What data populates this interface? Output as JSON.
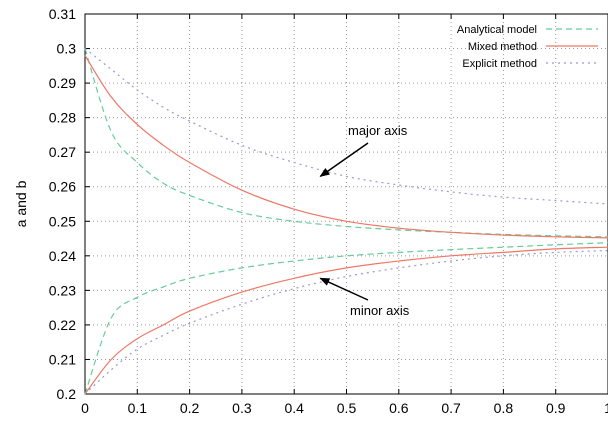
{
  "chart_data": {
    "type": "line",
    "title": "",
    "xlabel": "",
    "ylabel": "a and b",
    "xlim": [
      0,
      1
    ],
    "ylim": [
      0.2,
      0.31
    ],
    "grid": true,
    "legend_position": "top-right",
    "x_ticks": [
      0,
      0.1,
      0.2,
      0.3,
      0.4,
      0.5,
      0.6,
      0.7,
      0.8,
      0.9,
      1
    ],
    "x_tick_labels": [
      "0",
      "0.1",
      "0.2",
      "0.3",
      "0.4",
      "0.5",
      "0.6",
      "0.7",
      "0.8",
      "0.9",
      "1"
    ],
    "y_ticks": [
      0.2,
      0.21,
      0.22,
      0.23,
      0.24,
      0.25,
      0.26,
      0.27,
      0.28,
      0.29,
      0.3,
      0.31
    ],
    "y_tick_labels": [
      "0.2",
      "0.21",
      "0.22",
      "0.23",
      "0.24",
      "0.25",
      "0.26",
      "0.27",
      "0.28",
      "0.29",
      "0.3",
      "0.31"
    ],
    "x": [
      0,
      0.05,
      0.1,
      0.15,
      0.2,
      0.3,
      0.4,
      0.5,
      0.6,
      0.7,
      0.8,
      0.9,
      1.0
    ],
    "series": [
      {
        "name": "Analytical model",
        "color": "#66cc99",
        "dash": "dashed",
        "curves": [
          {
            "label": "major axis",
            "y": [
              0.3,
              0.276,
              0.267,
              0.261,
              0.2575,
              0.2525,
              0.25,
              0.2485,
              0.2475,
              0.2468,
              0.2462,
              0.2458,
              0.2455
            ]
          },
          {
            "label": "minor axis",
            "y": [
              0.2,
              0.222,
              0.228,
              0.231,
              0.2335,
              0.2365,
              0.2385,
              0.24,
              0.241,
              0.2418,
              0.2425,
              0.2432,
              0.2438
            ]
          }
        ]
      },
      {
        "name": "Mixed method",
        "color": "#ee7766",
        "dash": "solid",
        "curves": [
          {
            "label": "major axis",
            "y": [
              0.298,
              0.286,
              0.278,
              0.272,
              0.267,
              0.259,
              0.2535,
              0.25,
              0.248,
              0.2468,
              0.246,
              0.2455,
              0.2452
            ]
          },
          {
            "label": "minor axis",
            "y": [
              0.2,
              0.21,
              0.216,
              0.22,
              0.224,
              0.2295,
              0.2335,
              0.2365,
              0.2385,
              0.24,
              0.241,
              0.242,
              0.2425
            ]
          }
        ]
      },
      {
        "name": "Explicit method",
        "color": "#9999cc",
        "dash": "dotted",
        "curves": [
          {
            "label": "major axis",
            "y": [
              0.3,
              0.294,
              0.288,
              0.283,
              0.279,
              0.272,
              0.267,
              0.263,
              0.2605,
              0.2585,
              0.257,
              0.256,
              0.255
            ]
          },
          {
            "label": "minor axis",
            "y": [
              0.2,
              0.207,
              0.213,
              0.217,
              0.2205,
              0.226,
              0.2305,
              0.234,
              0.2365,
              0.2385,
              0.24,
              0.241,
              0.2415
            ]
          }
        ]
      }
    ],
    "annotations": [
      {
        "text": "major axis",
        "target": [
          0.45,
          0.263
        ]
      },
      {
        "text": "minor axis",
        "target": [
          0.45,
          0.2335
        ]
      }
    ]
  }
}
